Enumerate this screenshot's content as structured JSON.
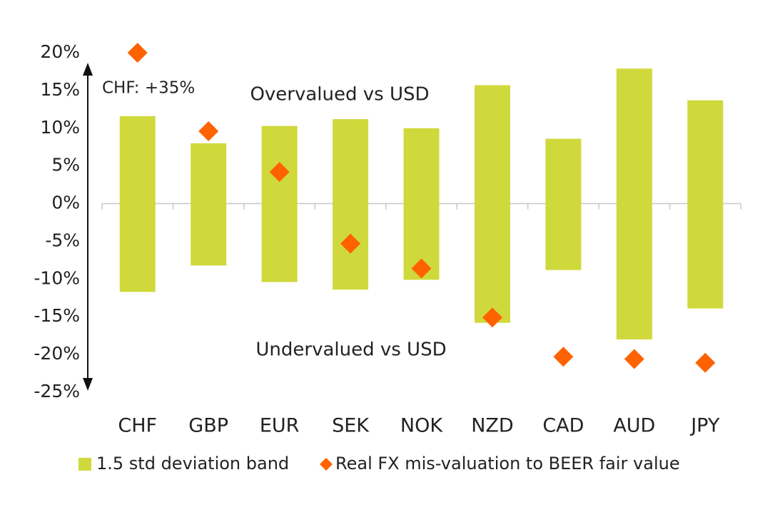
{
  "chart_data": {
    "type": "bar",
    "categories": [
      "CHF",
      "GBP",
      "EUR",
      "SEK",
      "NOK",
      "NZD",
      "CAD",
      "AUD",
      "JPY"
    ],
    "series": [
      {
        "name": "1.5 std deviation band",
        "type": "range_bar",
        "color": "#cfd93b",
        "low": [
          -11.7,
          -8.2,
          -10.4,
          -11.4,
          -10.1,
          -15.8,
          -8.8,
          -18.0,
          -13.9
        ],
        "high": [
          11.6,
          8.0,
          10.3,
          11.2,
          10.0,
          15.7,
          8.6,
          17.9,
          13.7
        ]
      },
      {
        "name": "Real FX mis-valuation to BEER fair value",
        "type": "scatter",
        "color": "#ff6200",
        "values": [
          20,
          9.6,
          4.2,
          -5.3,
          -8.6,
          -15.1,
          -20.3,
          -20.6,
          -21.1
        ]
      }
    ],
    "annotations": [
      "CHF: +35%",
      "Overvalued vs USD",
      "Undervalued vs USD"
    ],
    "ylim": [
      -25,
      20
    ],
    "yticks": [
      {
        "value": 20,
        "label": "20%"
      },
      {
        "value": 15,
        "label": "15%"
      },
      {
        "value": 10,
        "label": "10%"
      },
      {
        "value": 5,
        "label": "5%"
      },
      {
        "value": 0,
        "label": "0%"
      },
      {
        "value": -5,
        "label": "-5%"
      },
      {
        "value": -10,
        "label": "-10%"
      },
      {
        "value": -15,
        "label": "-15%"
      },
      {
        "value": -20,
        "label": "-20%"
      },
      {
        "value": -25,
        "label": "-25%"
      }
    ],
    "legend": "bottom"
  }
}
